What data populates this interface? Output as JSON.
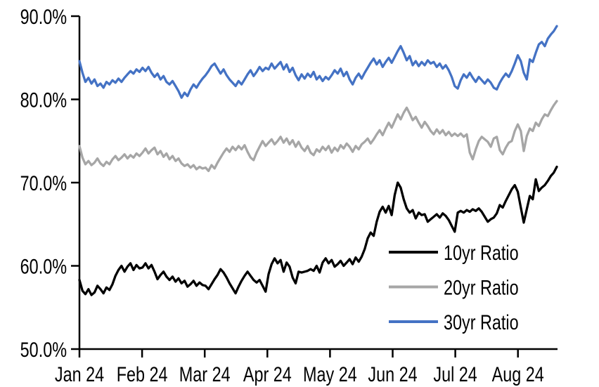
{
  "chart_data": {
    "type": "line",
    "title": "",
    "grid": false,
    "legend_position": "center-right-overlay",
    "axis_color": "#000000",
    "x_tick_labels": [
      "Jan 24",
      "Feb 24",
      "Mar 24",
      "Apr 24",
      "May 24",
      "Jun 24",
      "Jul 24",
      "Aug 24"
    ],
    "y_tick_labels": [
      "50.0%",
      "60.0%",
      "70.0%",
      "80.0%",
      "90.0%"
    ],
    "y_tick_values": [
      50,
      60,
      70,
      80,
      90
    ],
    "ylim": [
      50,
      90
    ],
    "series": [
      {
        "name": "10yr Ratio",
        "color": "#000000",
        "values": [
          58.3,
          57.0,
          56.6,
          57.2,
          56.5,
          56.8,
          57.6,
          57.2,
          56.7,
          57.4,
          57.1,
          57.8,
          58.8,
          59.5,
          60.0,
          59.3,
          59.9,
          60.3,
          59.5,
          60.1,
          59.7,
          59.8,
          60.3,
          59.7,
          60.1,
          59.3,
          58.4,
          58.9,
          59.3,
          58.7,
          58.3,
          58.7,
          58.1,
          58.5,
          57.9,
          58.2,
          57.5,
          57.8,
          58.2,
          57.6,
          58.0,
          57.7,
          57.6,
          57.2,
          57.8,
          58.4,
          58.9,
          59.6,
          59.2,
          58.6,
          57.9,
          57.3,
          56.7,
          57.5,
          58.2,
          58.8,
          59.3,
          58.8,
          58.3,
          58.0,
          58.3,
          57.6,
          56.9,
          59.0,
          60.2,
          60.9,
          60.3,
          60.7,
          59.3,
          60.4,
          59.9,
          58.6,
          57.9,
          59.3,
          59.2,
          59.3,
          59.4,
          59.6,
          59.4,
          60.0,
          59.2,
          60.4,
          60.9,
          60.3,
          60.7,
          59.9,
          60.2,
          60.6,
          60.0,
          60.4,
          60.8,
          60.2,
          61.0,
          60.5,
          61.1,
          62.0,
          63.3,
          64.0,
          63.6,
          65.3,
          66.5,
          67.1,
          66.4,
          67.2,
          66.1,
          68.5,
          70.0,
          69.4,
          68.0,
          66.9,
          66.4,
          66.7,
          65.7,
          66.4,
          66.1,
          66.2,
          65.3,
          65.6,
          65.9,
          66.2,
          65.8,
          66.3,
          66.0,
          65.5,
          64.8,
          64.1,
          66.4,
          66.6,
          66.4,
          66.7,
          66.5,
          66.8,
          66.6,
          66.9,
          66.5,
          65.9,
          65.3,
          65.6,
          65.8,
          66.3,
          67.3,
          67.0,
          67.8,
          68.5,
          69.2,
          69.7,
          68.9,
          67.0,
          65.2,
          66.8,
          68.4,
          68.0,
          70.4,
          69.0,
          69.4,
          69.7,
          70.2,
          70.8,
          71.2,
          71.9
        ]
      },
      {
        "name": "20yr Ratio",
        "color": "#A6A6A6",
        "values": [
          74.4,
          73.0,
          72.2,
          72.6,
          72.1,
          72.4,
          72.9,
          72.3,
          72.0,
          72.5,
          72.2,
          72.8,
          73.2,
          72.7,
          73.0,
          73.4,
          72.9,
          73.3,
          73.0,
          73.5,
          73.2,
          73.6,
          74.1,
          73.5,
          73.9,
          74.2,
          73.4,
          73.8,
          73.1,
          73.5,
          72.8,
          73.2,
          72.6,
          72.9,
          72.3,
          72.0,
          72.2,
          71.8,
          72.1,
          71.6,
          71.9,
          71.7,
          71.8,
          71.4,
          72.1,
          71.7,
          72.4,
          73.0,
          73.6,
          74.1,
          73.7,
          74.3,
          73.9,
          74.4,
          74.0,
          74.5,
          73.7,
          73.0,
          72.7,
          73.6,
          74.3,
          75.0,
          74.4,
          74.8,
          75.2,
          74.6,
          75.0,
          75.5,
          74.8,
          75.3,
          74.6,
          75.1,
          74.3,
          74.9,
          74.2,
          73.8,
          74.4,
          73.6,
          73.3,
          74.0,
          73.7,
          74.3,
          73.9,
          74.4,
          73.6,
          74.2,
          73.8,
          74.5,
          74.1,
          74.7,
          74.3,
          73.7,
          74.4,
          74.0,
          74.6,
          74.9,
          75.3,
          74.7,
          75.2,
          75.8,
          76.3,
          75.7,
          76.5,
          77.2,
          76.6,
          77.4,
          78.2,
          77.6,
          78.4,
          79.0,
          78.3,
          77.5,
          77.9,
          77.2,
          76.6,
          77.3,
          76.8,
          76.2,
          75.8,
          76.4,
          75.9,
          76.3,
          75.7,
          76.1,
          75.6,
          75.9,
          75.6,
          75.9,
          75.5,
          75.8,
          73.6,
          72.8,
          74.0,
          75.0,
          75.5,
          75.2,
          74.9,
          74.3,
          75.3,
          75.5,
          73.9,
          73.4,
          74.2,
          74.8,
          75.0,
          76.2,
          77.0,
          76.2,
          73.8,
          75.6,
          76.5,
          76.2,
          77.2,
          76.8,
          77.6,
          78.2,
          78.0,
          78.7,
          79.3,
          79.8
        ]
      },
      {
        "name": "30yr Ratio",
        "color": "#4472C4",
        "values": [
          84.6,
          83.2,
          82.1,
          82.6,
          81.9,
          82.4,
          81.6,
          81.9,
          81.4,
          82.1,
          81.8,
          82.3,
          82.0,
          82.5,
          82.1,
          82.6,
          83.0,
          83.4,
          83.1,
          83.6,
          83.3,
          83.8,
          83.4,
          83.9,
          83.2,
          82.7,
          83.1,
          82.4,
          82.8,
          82.1,
          81.8,
          82.2,
          81.6,
          81.0,
          80.2,
          80.8,
          80.4,
          81.2,
          81.8,
          81.4,
          82.0,
          82.5,
          82.9,
          83.4,
          84.0,
          84.3,
          83.7,
          83.1,
          83.6,
          82.9,
          82.4,
          82.0,
          81.6,
          82.2,
          81.8,
          82.4,
          83.0,
          83.5,
          82.8,
          83.3,
          83.9,
          83.4,
          83.8,
          83.6,
          84.3,
          83.7,
          84.1,
          84.5,
          83.6,
          84.2,
          83.3,
          83.8,
          82.9,
          82.3,
          83.0,
          82.5,
          83.1,
          82.7,
          83.3,
          82.4,
          82.8,
          82.2,
          82.7,
          82.4,
          82.9,
          83.5,
          83.1,
          83.7,
          82.8,
          83.3,
          82.4,
          81.8,
          82.6,
          83.1,
          82.5,
          83.2,
          83.8,
          84.4,
          84.9,
          84.2,
          84.7,
          83.9,
          84.5,
          85.0,
          84.4,
          85.1,
          85.8,
          86.4,
          85.6,
          84.7,
          85.2,
          84.1,
          84.6,
          84.0,
          84.5,
          84.1,
          84.7,
          84.3,
          84.5,
          83.9,
          84.3,
          83.7,
          84.1,
          83.5,
          82.7,
          81.6,
          81.3,
          82.3,
          83.0,
          82.6,
          83.2,
          82.6,
          82.1,
          82.7,
          82.3,
          81.9,
          82.4,
          82.0,
          81.4,
          81.2,
          82.0,
          82.6,
          83.1,
          82.7,
          83.4,
          84.3,
          85.3,
          84.6,
          83.2,
          82.4,
          84.8,
          84.5,
          85.6,
          86.6,
          86.9,
          86.4,
          87.3,
          87.8,
          88.2,
          88.8
        ]
      }
    ]
  }
}
